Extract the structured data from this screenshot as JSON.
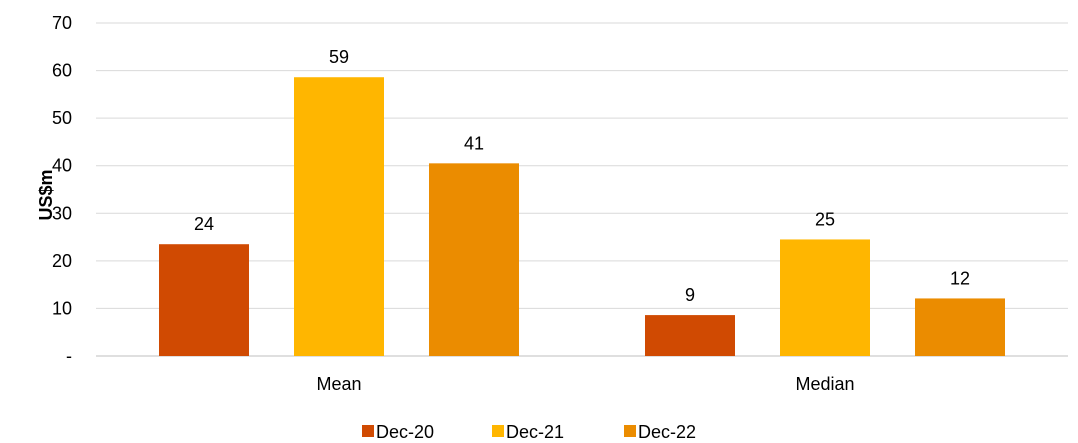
{
  "chart_data": {
    "type": "bar",
    "title": "",
    "xlabel": "",
    "ylabel": "US$m",
    "categories": [
      "Mean",
      "Median"
    ],
    "series": [
      {
        "name": "Dec-20",
        "values": [
          23.5,
          8.6
        ],
        "labels": [
          "24",
          "9"
        ],
        "color": "#D04A02"
      },
      {
        "name": "Dec-21",
        "values": [
          58.6,
          24.5
        ],
        "labels": [
          "59",
          "25"
        ],
        "color": "#FFB600"
      },
      {
        "name": "Dec-22",
        "values": [
          40.5,
          12.1
        ],
        "labels": [
          "41",
          "12"
        ],
        "color": "#EB8C00"
      }
    ],
    "ylim": [
      0,
      70
    ],
    "yticks": [
      0,
      10,
      20,
      30,
      40,
      50,
      60,
      70
    ],
    "ytick_labels": [
      "-",
      "10",
      "20",
      "30",
      "40",
      "50",
      "60",
      "70"
    ],
    "grid": true,
    "legend_position": "bottom"
  }
}
